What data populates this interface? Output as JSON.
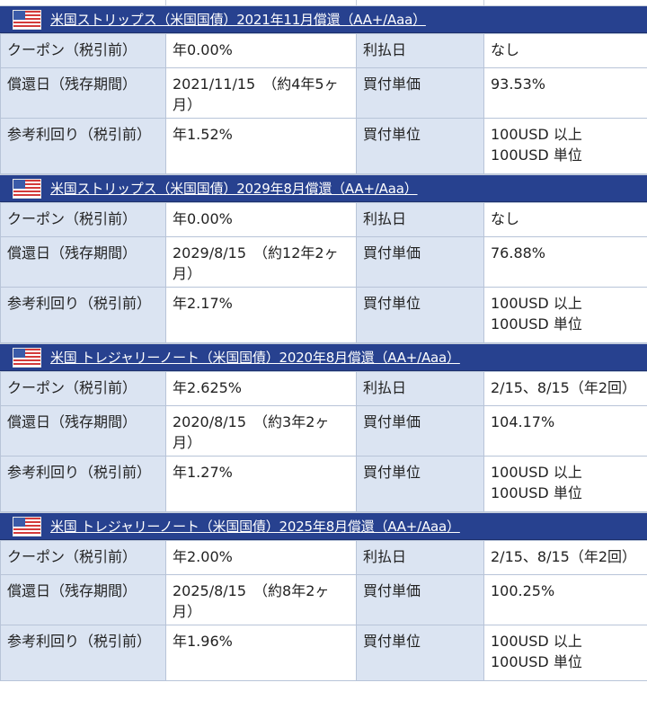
{
  "bonds": [
    {
      "title": "米国ストリップス（米国国債）2021年11月償還（AA+/Aaa）",
      "rows": [
        {
          "label1": "クーポン（税引前）",
          "value1": "年0.00%",
          "label2": "利払日",
          "value2": "なし"
        },
        {
          "label1": "償還日（残存期間）",
          "value1": "2021/11/15　（約4年5ヶ月）",
          "label2": "買付単価",
          "value2": "93.53%"
        },
        {
          "label1": "参考利回り（税引前）",
          "value1": "年1.52%",
          "label2": "買付単位",
          "value2": "100USD 以上\n100USD 単位"
        }
      ]
    },
    {
      "title": "米国ストリップス（米国国債）2029年8月償還（AA+/Aaa）",
      "rows": [
        {
          "label1": "クーポン（税引前）",
          "value1": "年0.00%",
          "label2": "利払日",
          "value2": "なし"
        },
        {
          "label1": "償還日（残存期間）",
          "value1": "2029/8/15　（約12年2ヶ月）",
          "label2": "買付単価",
          "value2": "76.88%"
        },
        {
          "label1": "参考利回り（税引前）",
          "value1": "年2.17%",
          "label2": "買付単位",
          "value2": "100USD 以上\n100USD 単位"
        }
      ]
    },
    {
      "title": "米国 トレジャリーノート（米国国債）2020年8月償還（AA+/Aaa）",
      "rows": [
        {
          "label1": "クーポン（税引前）",
          "value1": "年2.625%",
          "label2": "利払日",
          "value2": "2/15、8/15（年2回）"
        },
        {
          "label1": "償還日（残存期間）",
          "value1": "2020/8/15　（約3年2ヶ月）",
          "label2": "買付単価",
          "value2": "104.17%"
        },
        {
          "label1": "参考利回り（税引前）",
          "value1": "年1.27%",
          "label2": "買付単位",
          "value2": "100USD 以上\n100USD 単位"
        }
      ]
    },
    {
      "title": "米国 トレジャリーノート（米国国債）2025年8月償還（AA+/Aaa）",
      "rows": [
        {
          "label1": "クーポン（税引前）",
          "value1": "年2.00%",
          "label2": "利払日",
          "value2": "2/15、8/15（年2回）"
        },
        {
          "label1": "償還日（残存期間）",
          "value1": "2025/8/15　（約8年2ヶ月）",
          "label2": "買付単価",
          "value2": "100.25%"
        },
        {
          "label1": "参考利回り（税引前）",
          "value1": "年1.96%",
          "label2": "買付単位",
          "value2": "100USD 以上\n100USD 単位"
        }
      ]
    }
  ],
  "colors": {
    "header_bg": "#27418f",
    "label_bg": "#dbe4f2",
    "border": "#b8c4d8"
  },
  "icon": "us-flag-icon"
}
